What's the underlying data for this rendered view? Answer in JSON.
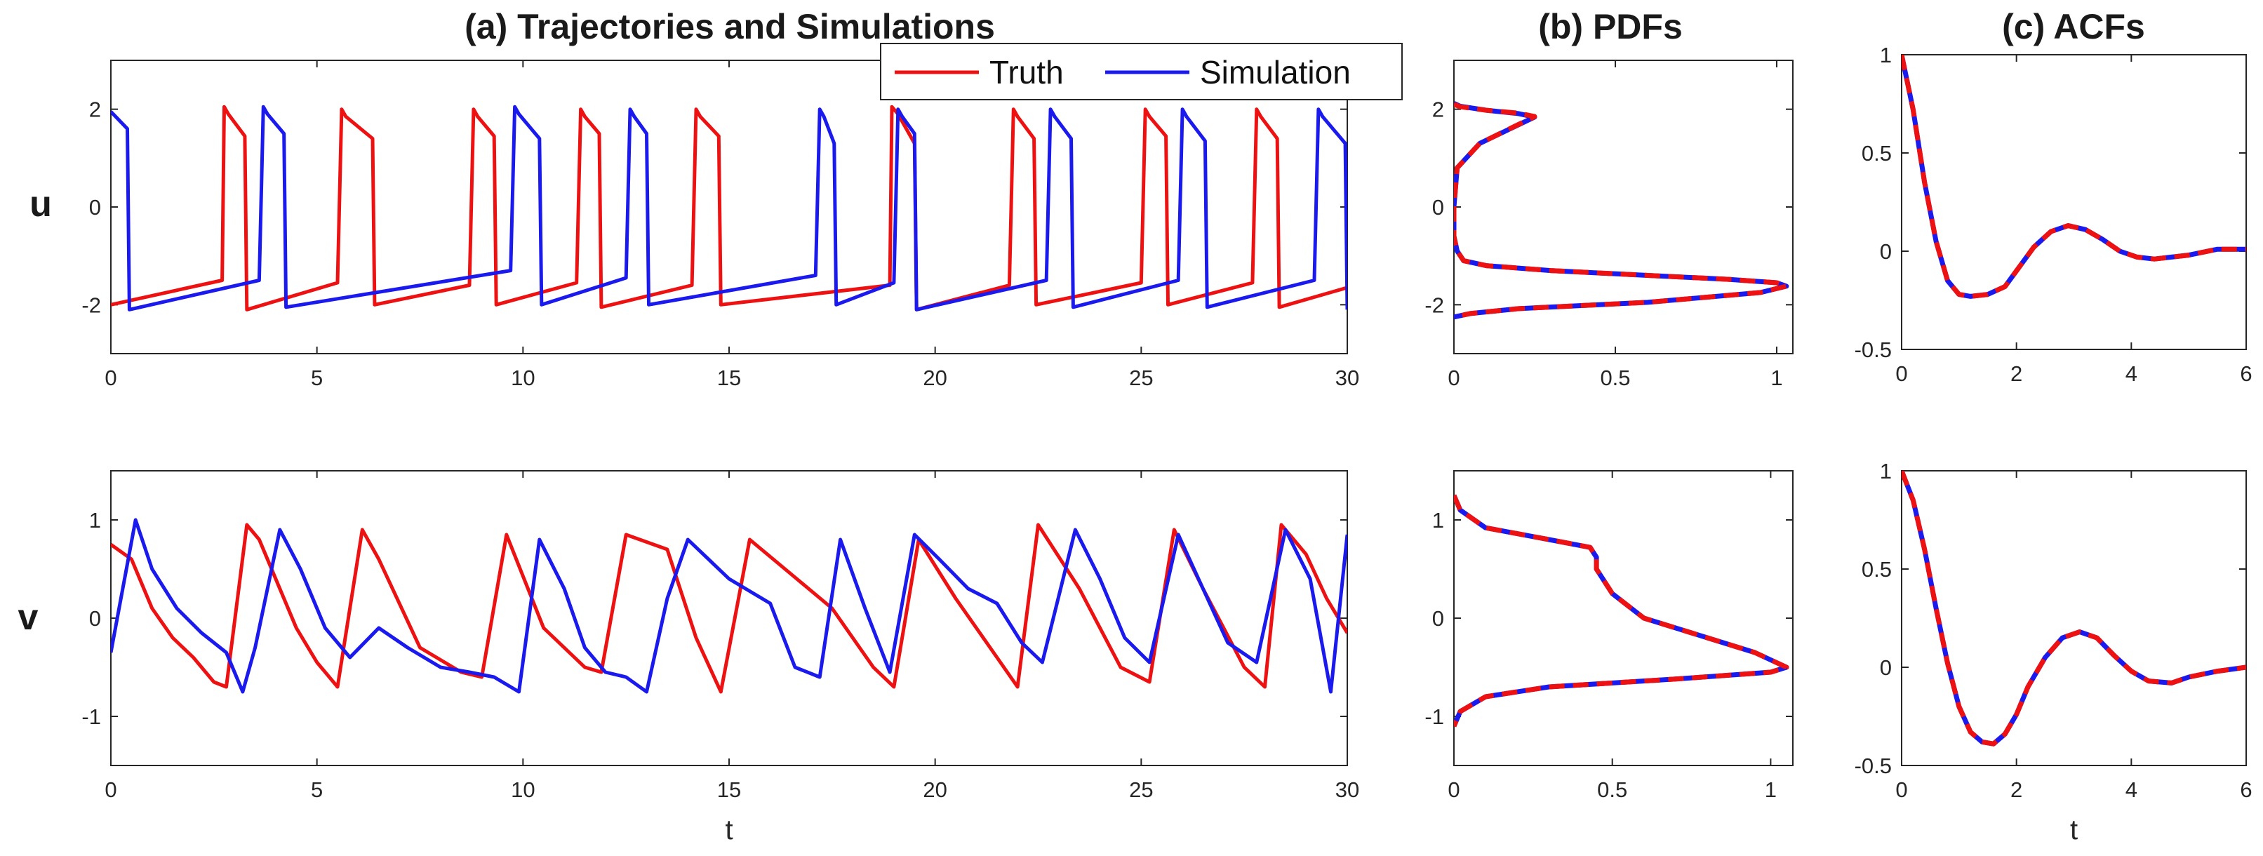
{
  "figure": {
    "row_labels": [
      "u",
      "v"
    ]
  },
  "colors": {
    "truth": "#ee1111",
    "simulation": "#1a1aee",
    "axis": "#262626",
    "background": "#ffffff"
  },
  "chart_data": [
    {
      "id": "traj-u",
      "type": "line",
      "title": "(a) Trajectories and Simulations",
      "xlabel": "",
      "ylabel": "u",
      "xlim": [
        0,
        30
      ],
      "ylim": [
        -3,
        3
      ],
      "xticks": [
        0,
        5,
        10,
        15,
        20,
        25,
        30
      ],
      "yticks": [
        -2,
        0,
        2
      ],
      "legend": {
        "position": "top-right",
        "entries": [
          "Truth",
          "Simulation"
        ]
      },
      "series": [
        {
          "name": "Truth",
          "color": "#ee1111",
          "dashed": false,
          "x": [
            0,
            2.7,
            2.75,
            2.85,
            3.25,
            3.3,
            5.5,
            5.6,
            5.7,
            6.35,
            6.4,
            8.7,
            8.8,
            8.9,
            9.3,
            9.35,
            11.3,
            11.4,
            11.5,
            11.85,
            11.9,
            14.1,
            14.2,
            14.3,
            14.75,
            14.8,
            18.9,
            18.95,
            19.1,
            19.5,
            19.55,
            21.8,
            21.9,
            22.0,
            22.4,
            22.45,
            25.0,
            25.1,
            25.2,
            25.6,
            25.65,
            27.7,
            27.8,
            27.9,
            28.3,
            28.35,
            30
          ],
          "y": [
            -2.0,
            -1.5,
            2.05,
            1.9,
            1.45,
            -2.1,
            -1.55,
            2.0,
            1.85,
            1.4,
            -2.0,
            -1.6,
            2.0,
            1.85,
            1.45,
            -2.0,
            -1.55,
            2.0,
            1.85,
            1.5,
            -2.05,
            -1.6,
            2.0,
            1.85,
            1.45,
            -2.0,
            -1.6,
            2.05,
            1.9,
            1.3,
            -2.1,
            -1.6,
            2.0,
            1.85,
            1.4,
            -2.0,
            -1.55,
            2.0,
            1.85,
            1.45,
            -2.0,
            -1.55,
            2.0,
            1.85,
            1.4,
            -2.05,
            -1.65
          ]
        },
        {
          "name": "Simulation",
          "color": "#1a1aee",
          "dashed": false,
          "x": [
            0,
            0.4,
            0.45,
            3.6,
            3.7,
            3.8,
            4.2,
            4.25,
            9.7,
            9.8,
            9.9,
            10.4,
            10.45,
            12.5,
            12.6,
            12.7,
            13.0,
            13.05,
            17.1,
            17.2,
            17.3,
            17.55,
            17.6,
            19.0,
            19.1,
            19.2,
            19.5,
            19.55,
            22.7,
            22.8,
            22.9,
            23.3,
            23.35,
            25.9,
            26.0,
            26.1,
            26.55,
            26.6,
            29.2,
            29.3,
            29.4,
            29.95,
            30
          ],
          "y": [
            1.95,
            1.6,
            -2.1,
            -1.5,
            2.05,
            1.9,
            1.5,
            -2.05,
            -1.3,
            2.05,
            1.9,
            1.4,
            -2.0,
            -1.45,
            2.0,
            1.85,
            1.5,
            -2.0,
            -1.4,
            2.0,
            1.85,
            1.3,
            -2.0,
            -1.55,
            2.0,
            1.85,
            1.5,
            -2.1,
            -1.5,
            2.0,
            1.85,
            1.4,
            -2.05,
            -1.5,
            2.0,
            1.85,
            1.35,
            -2.05,
            -1.5,
            2.0,
            1.85,
            1.3,
            -2.1
          ]
        }
      ]
    },
    {
      "id": "traj-v",
      "type": "line",
      "title": "",
      "xlabel": "t",
      "ylabel": "v",
      "xlim": [
        0,
        30
      ],
      "ylim": [
        -1.5,
        1.5
      ],
      "xticks": [
        0,
        5,
        10,
        15,
        20,
        25,
        30
      ],
      "yticks": [
        -1,
        0,
        1
      ],
      "series": [
        {
          "name": "Truth",
          "color": "#ee1111",
          "dashed": false,
          "x": [
            0,
            0.5,
            1.0,
            1.5,
            2.0,
            2.5,
            2.8,
            3.3,
            3.6,
            4.5,
            5.0,
            5.5,
            6.1,
            6.5,
            7.5,
            8.5,
            9.0,
            9.6,
            10.5,
            11.5,
            11.9,
            12.5,
            13.5,
            14.2,
            14.8,
            15.5,
            16.5,
            17.5,
            18.5,
            19.0,
            19.6,
            20.5,
            21.5,
            22.0,
            22.5,
            23.5,
            24.5,
            25.2,
            25.8,
            26.5,
            27.5,
            28.0,
            28.4,
            29.0,
            29.5,
            30
          ],
          "y": [
            0.75,
            0.6,
            0.1,
            -0.2,
            -0.4,
            -0.65,
            -0.7,
            0.95,
            0.8,
            -0.1,
            -0.45,
            -0.7,
            0.9,
            0.6,
            -0.3,
            -0.55,
            -0.6,
            0.85,
            -0.1,
            -0.5,
            -0.55,
            0.85,
            0.7,
            -0.2,
            -0.75,
            0.8,
            0.45,
            0.1,
            -0.5,
            -0.7,
            0.8,
            0.2,
            -0.4,
            -0.7,
            0.95,
            0.3,
            -0.5,
            -0.65,
            0.9,
            0.3,
            -0.5,
            -0.7,
            0.95,
            0.65,
            0.2,
            -0.15
          ]
        },
        {
          "name": "Simulation",
          "color": "#1a1aee",
          "dashed": false,
          "x": [
            0,
            0.2,
            0.6,
            1.0,
            1.6,
            2.2,
            2.8,
            3.2,
            3.5,
            4.1,
            4.6,
            5.2,
            5.8,
            6.5,
            7.2,
            8.0,
            8.7,
            9.3,
            9.9,
            10.4,
            11.0,
            11.5,
            12.0,
            12.5,
            13.0,
            13.5,
            14.0,
            15.0,
            16.0,
            16.6,
            17.2,
            17.7,
            18.3,
            18.9,
            19.5,
            20.1,
            20.8,
            21.5,
            22.1,
            22.6,
            23.4,
            24.0,
            24.6,
            25.2,
            25.9,
            26.5,
            27.1,
            27.8,
            28.5,
            29.1,
            29.6,
            30
          ],
          "y": [
            -0.35,
            0.1,
            1.0,
            0.5,
            0.1,
            -0.15,
            -0.35,
            -0.75,
            -0.3,
            0.9,
            0.5,
            -0.1,
            -0.4,
            -0.1,
            -0.3,
            -0.5,
            -0.55,
            -0.6,
            -0.75,
            0.8,
            0.3,
            -0.3,
            -0.55,
            -0.6,
            -0.75,
            0.2,
            0.8,
            0.4,
            0.15,
            -0.5,
            -0.6,
            0.8,
            0.1,
            -0.55,
            0.85,
            0.6,
            0.3,
            0.15,
            -0.25,
            -0.45,
            0.9,
            0.4,
            -0.2,
            -0.45,
            0.85,
            0.3,
            -0.25,
            -0.45,
            0.9,
            0.4,
            -0.75,
            0.85
          ]
        }
      ]
    },
    {
      "id": "pdf-u",
      "type": "line",
      "title": "(b) PDFs",
      "xlabel": "",
      "ylabel": "",
      "xlim": [
        0,
        1.05
      ],
      "ylim": [
        -3,
        3
      ],
      "xticks": [
        0,
        0.5,
        1
      ],
      "yticks": [
        -2,
        0,
        2
      ],
      "series": [
        {
          "name": "Truth",
          "color": "#ee1111",
          "dashed": true,
          "x": [
            0.0,
            0.02,
            0.1,
            0.2,
            0.25,
            0.08,
            0.01,
            0.0,
            0.0,
            0.01,
            0.03,
            0.1,
            0.3,
            0.6,
            0.85,
            1.0,
            1.03,
            0.95,
            0.6,
            0.2,
            0.05,
            0.0
          ],
          "y": [
            2.1,
            2.05,
            1.98,
            1.92,
            1.85,
            1.3,
            0.8,
            0.0,
            -0.6,
            -0.9,
            -1.1,
            -1.2,
            -1.3,
            -1.4,
            -1.48,
            -1.55,
            -1.62,
            -1.75,
            -1.95,
            -2.08,
            -2.18,
            -2.25
          ]
        },
        {
          "name": "Simulation",
          "color": "#1a1aee",
          "dashed": false,
          "x": [
            0.0,
            0.02,
            0.1,
            0.2,
            0.25,
            0.08,
            0.01,
            0.0,
            0.0,
            0.01,
            0.03,
            0.1,
            0.3,
            0.6,
            0.85,
            1.0,
            1.03,
            0.95,
            0.6,
            0.2,
            0.05,
            0.0
          ],
          "y": [
            2.12,
            2.06,
            1.98,
            1.91,
            1.84,
            1.3,
            0.8,
            0.0,
            -0.6,
            -0.9,
            -1.1,
            -1.2,
            -1.3,
            -1.4,
            -1.48,
            -1.55,
            -1.62,
            -1.75,
            -1.95,
            -2.08,
            -2.18,
            -2.25
          ]
        }
      ]
    },
    {
      "id": "pdf-v",
      "type": "line",
      "title": "",
      "xlabel": "",
      "ylabel": "",
      "xlim": [
        0,
        1.07
      ],
      "ylim": [
        -1.5,
        1.5
      ],
      "xticks": [
        0,
        0.5,
        1
      ],
      "yticks": [
        -1,
        0,
        1
      ],
      "series": [
        {
          "name": "Truth",
          "color": "#ee1111",
          "dashed": true,
          "x": [
            0.0,
            0.02,
            0.1,
            0.3,
            0.43,
            0.45,
            0.45,
            0.5,
            0.6,
            0.8,
            0.95,
            1.05,
            1.0,
            0.7,
            0.3,
            0.1,
            0.02,
            0.0
          ],
          "y": [
            1.25,
            1.1,
            0.92,
            0.8,
            0.72,
            0.62,
            0.5,
            0.25,
            0.0,
            -0.2,
            -0.35,
            -0.5,
            -0.55,
            -0.62,
            -0.7,
            -0.8,
            -0.95,
            -1.1
          ]
        },
        {
          "name": "Simulation",
          "color": "#1a1aee",
          "dashed": false,
          "x": [
            0.0,
            0.02,
            0.1,
            0.3,
            0.43,
            0.45,
            0.45,
            0.5,
            0.6,
            0.8,
            0.95,
            1.05,
            1.0,
            0.7,
            0.3,
            0.1,
            0.02,
            0.0
          ],
          "y": [
            1.25,
            1.1,
            0.92,
            0.8,
            0.72,
            0.62,
            0.5,
            0.25,
            0.0,
            -0.2,
            -0.35,
            -0.5,
            -0.55,
            -0.62,
            -0.7,
            -0.8,
            -0.95,
            -1.1
          ]
        }
      ]
    },
    {
      "id": "acf-u",
      "type": "line",
      "title": "(c) ACFs",
      "xlabel": "",
      "ylabel": "",
      "xlim": [
        0,
        6
      ],
      "ylim": [
        -0.5,
        1
      ],
      "xticks": [
        0,
        2,
        4,
        6
      ],
      "yticks": [
        -0.5,
        0,
        0.5,
        1
      ],
      "series": [
        {
          "name": "Truth",
          "color": "#ee1111",
          "dashed": true,
          "x": [
            0,
            0.2,
            0.4,
            0.6,
            0.8,
            1.0,
            1.2,
            1.5,
            1.8,
            2.0,
            2.3,
            2.6,
            2.9,
            3.2,
            3.5,
            3.8,
            4.1,
            4.4,
            4.7,
            5.0,
            5.5,
            6.0
          ],
          "y": [
            1.0,
            0.72,
            0.35,
            0.05,
            -0.15,
            -0.22,
            -0.23,
            -0.22,
            -0.18,
            -0.1,
            0.02,
            0.1,
            0.13,
            0.11,
            0.06,
            0.0,
            -0.03,
            -0.04,
            -0.03,
            -0.02,
            0.01,
            0.01
          ]
        },
        {
          "name": "Simulation",
          "color": "#1a1aee",
          "dashed": false,
          "x": [
            0,
            0.2,
            0.4,
            0.6,
            0.8,
            1.0,
            1.2,
            1.5,
            1.8,
            2.0,
            2.3,
            2.6,
            2.9,
            3.2,
            3.5,
            3.8,
            4.1,
            4.4,
            4.7,
            5.0,
            5.5,
            6.0
          ],
          "y": [
            1.0,
            0.72,
            0.35,
            0.05,
            -0.15,
            -0.22,
            -0.23,
            -0.22,
            -0.18,
            -0.1,
            0.02,
            0.1,
            0.13,
            0.11,
            0.06,
            0.0,
            -0.03,
            -0.04,
            -0.03,
            -0.02,
            0.01,
            0.01
          ]
        }
      ]
    },
    {
      "id": "acf-v",
      "type": "line",
      "title": "",
      "xlabel": "t",
      "ylabel": "",
      "xlim": [
        0,
        6
      ],
      "ylim": [
        -0.5,
        1
      ],
      "xticks": [
        0,
        2,
        4,
        6
      ],
      "yticks": [
        -0.5,
        0,
        0.5,
        1
      ],
      "series": [
        {
          "name": "Truth",
          "color": "#ee1111",
          "dashed": true,
          "x": [
            0,
            0.2,
            0.4,
            0.6,
            0.8,
            1.0,
            1.2,
            1.4,
            1.6,
            1.8,
            2.0,
            2.2,
            2.5,
            2.8,
            3.1,
            3.4,
            3.7,
            4.0,
            4.3,
            4.7,
            5.0,
            5.5,
            6.0
          ],
          "y": [
            1.0,
            0.85,
            0.6,
            0.3,
            0.02,
            -0.2,
            -0.33,
            -0.38,
            -0.39,
            -0.34,
            -0.24,
            -0.1,
            0.05,
            0.15,
            0.18,
            0.15,
            0.06,
            -0.02,
            -0.07,
            -0.08,
            -0.05,
            -0.02,
            0.0
          ]
        },
        {
          "name": "Simulation",
          "color": "#1a1aee",
          "dashed": false,
          "x": [
            0,
            0.2,
            0.4,
            0.6,
            0.8,
            1.0,
            1.2,
            1.4,
            1.6,
            1.8,
            2.0,
            2.2,
            2.5,
            2.8,
            3.1,
            3.4,
            3.7,
            4.0,
            4.3,
            4.7,
            5.0,
            5.5,
            6.0
          ],
          "y": [
            1.0,
            0.85,
            0.6,
            0.3,
            0.02,
            -0.2,
            -0.33,
            -0.38,
            -0.39,
            -0.34,
            -0.24,
            -0.1,
            0.05,
            0.15,
            0.18,
            0.15,
            0.06,
            -0.02,
            -0.07,
            -0.08,
            -0.05,
            -0.02,
            0.0
          ]
        }
      ]
    }
  ]
}
